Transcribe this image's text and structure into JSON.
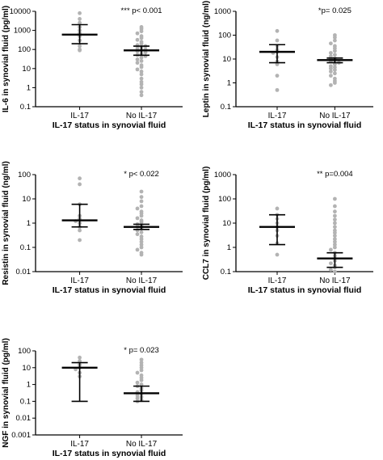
{
  "chart_data": [
    {
      "type": "scatter",
      "panel": "IL-6",
      "ylabel": "IL-6 in synovial fluid (pg/ml)",
      "xlabel": "IL-17 status in synovial fluid",
      "categories": [
        "IL-17",
        "No IL-17"
      ],
      "y_scale": "log",
      "ylim": [
        0.1,
        10000
      ],
      "yticks": [
        0.1,
        1,
        10,
        100,
        1000,
        10000
      ],
      "ytick_labels": [
        "0.1",
        "1",
        "10",
        "100",
        "1000",
        "10000"
      ],
      "annotation": "*** p< 0.001",
      "summary": [
        {
          "group": "IL-17",
          "median": 600,
          "lower": 200,
          "upper": 2000
        },
        {
          "group": "No IL-17",
          "median": 90,
          "lower": 50,
          "upper": 150
        }
      ],
      "series": [
        {
          "values": [
            8000,
            4000,
            2500,
            1500,
            1000,
            700,
            500,
            300,
            150,
            100,
            90
          ]
        },
        {
          "values": [
            1500,
            1200,
            900,
            700,
            500,
            400,
            320,
            250,
            200,
            170,
            150,
            130,
            115,
            100,
            90,
            80,
            70,
            60,
            52,
            45,
            38,
            30,
            25,
            20,
            15,
            12,
            9,
            7,
            5,
            3,
            2,
            1.5,
            1,
            0.6,
            0.4
          ]
        }
      ]
    },
    {
      "type": "scatter",
      "panel": "Leptin",
      "ylabel": "Leptin in synovial fluid (ng/ml)",
      "xlabel": "IL-17 status in synovial fluid",
      "categories": [
        "IL-17",
        "No IL-17"
      ],
      "y_scale": "log",
      "ylim": [
        0.1,
        1000
      ],
      "yticks": [
        0.1,
        1,
        10,
        100,
        1000
      ],
      "ytick_labels": [
        "0.1",
        "1",
        "10",
        "100",
        "1000"
      ],
      "annotation": "*p= 0.025",
      "summary": [
        {
          "group": "IL-17",
          "median": 20,
          "lower": 7,
          "upper": 40
        },
        {
          "group": "No IL-17",
          "median": 9,
          "lower": 7,
          "upper": 11
        }
      ],
      "series": [
        {
          "values": [
            150,
            60,
            35,
            25,
            20,
            18,
            12,
            8,
            6,
            2,
            0.5
          ]
        },
        {
          "values": [
            100,
            80,
            60,
            45,
            35,
            28,
            22,
            18,
            15,
            13,
            11,
            10,
            9,
            8,
            7,
            6,
            5,
            4.5,
            4,
            3.5,
            3,
            2.5,
            2,
            1.5,
            1.2,
            1,
            0.8
          ]
        }
      ]
    },
    {
      "type": "scatter",
      "panel": "Resistin",
      "ylabel": "Resistin in synovial fluid (ng/ml)",
      "xlabel": "IL-17 status in synovial fluid",
      "categories": [
        "IL-17",
        "No IL-17"
      ],
      "y_scale": "log",
      "ylim": [
        0.01,
        100
      ],
      "yticks": [
        0.01,
        0.1,
        1,
        10,
        100
      ],
      "ytick_labels": [
        "0.01",
        "0.1",
        "1",
        "10",
        "100"
      ],
      "annotation": "* p< 0.022",
      "summary": [
        {
          "group": "IL-17",
          "median": 1.3,
          "lower": 0.7,
          "upper": 6
        },
        {
          "group": "No IL-17",
          "median": 0.7,
          "lower": 0.55,
          "upper": 0.9
        }
      ],
      "series": [
        {
          "values": [
            70,
            40,
            6,
            2,
            1.5,
            1.2,
            1,
            0.7,
            0.5,
            0.2
          ]
        },
        {
          "values": [
            20,
            12,
            8,
            5,
            4,
            3,
            2.5,
            2,
            1.6,
            1.3,
            1.1,
            0.9,
            0.8,
            0.7,
            0.6,
            0.5,
            0.42,
            0.35,
            0.28,
            0.22,
            0.17,
            0.13,
            0.1,
            0.08,
            0.06,
            0.05
          ]
        }
      ]
    },
    {
      "type": "scatter",
      "panel": "CCL7",
      "ylabel": "CCL7 in synovial fluid (pg/ml)",
      "xlabel": "IL-17 status in synovial fluid",
      "categories": [
        "IL-17",
        "No IL-17"
      ],
      "y_scale": "log",
      "ylim": [
        0.1,
        1000
      ],
      "yticks": [
        0.1,
        1,
        10,
        100,
        1000
      ],
      "ytick_labels": [
        "0.1",
        "1",
        "10",
        "100",
        "1000"
      ],
      "annotation": "** p=0.004",
      "summary": [
        {
          "group": "IL-17",
          "median": 7,
          "lower": 1.3,
          "upper": 22
        },
        {
          "group": "No IL-17",
          "median": 0.35,
          "lower": 0.15,
          "upper": 0.6
        }
      ],
      "series": [
        {
          "values": [
            40,
            22,
            15,
            10,
            7,
            5,
            3,
            1.5,
            0.5
          ]
        },
        {
          "values": [
            100,
            50,
            30,
            20,
            14,
            10,
            7,
            5,
            4,
            3,
            2.2,
            1.7,
            1.3,
            1,
            0.8,
            0.6,
            0.45,
            0.35,
            0.28,
            0.22,
            0.18,
            0.15,
            0.12,
            0.1
          ]
        }
      ]
    },
    {
      "type": "scatter",
      "panel": "NGF",
      "ylabel": "NGF in synovial fluid (pg/ml)",
      "xlabel": "IL-17 status in synovial fluid",
      "categories": [
        "IL-17",
        "No IL-17"
      ],
      "y_scale": "log",
      "ylim": [
        0.001,
        100
      ],
      "yticks": [
        0.001,
        0.01,
        0.1,
        1,
        10,
        100
      ],
      "ytick_labels": [
        "0.001",
        "0.01",
        "0.1",
        "1",
        "10",
        "100"
      ],
      "annotation": "* p= 0.023",
      "summary": [
        {
          "group": "IL-17",
          "median": 10,
          "lower": 0.1,
          "upper": 20
        },
        {
          "group": "No IL-17",
          "median": 0.3,
          "lower": 0.1,
          "upper": 0.8
        }
      ],
      "series": [
        {
          "values": [
            40,
            25,
            15,
            10,
            8,
            5,
            3
          ]
        },
        {
          "values": [
            30,
            20,
            14,
            10,
            7,
            5,
            3.5,
            2.5,
            1.8,
            1.3,
            1,
            0.8,
            0.6,
            0.45,
            0.35,
            0.28,
            0.22,
            0.18,
            0.15,
            0.12,
            0.1
          ]
        }
      ]
    }
  ]
}
